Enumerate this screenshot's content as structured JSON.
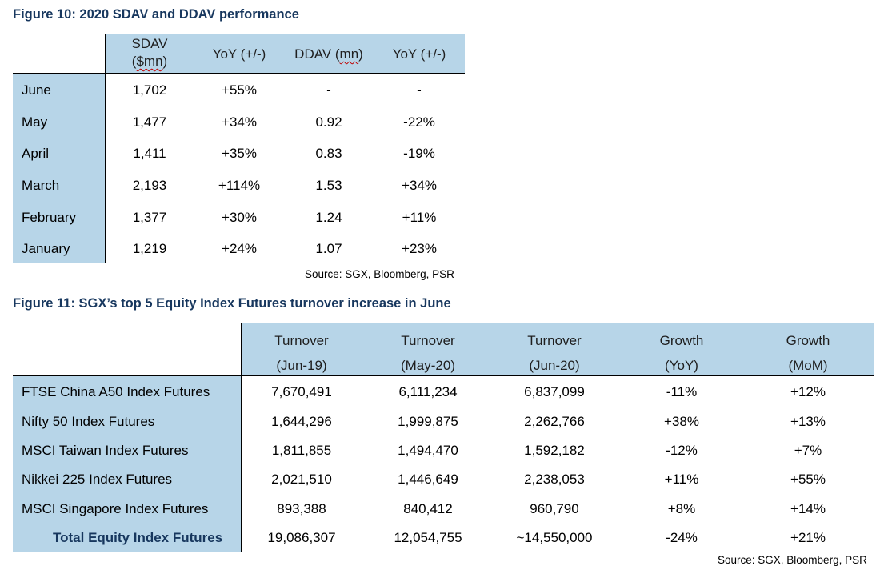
{
  "figure10": {
    "title": "Figure 10: 2020 SDAV and DDAV performance",
    "headers": {
      "sdav_line1": "SDAV",
      "sdav_line2_open": "(",
      "sdav_line2_unit": "$mn",
      "sdav_line2_close": ")",
      "yoy1": "YoY (+/-)",
      "ddav_pre": "DDAV (",
      "ddav_unit": "mn",
      "ddav_post": ")",
      "yoy2": "YoY (+/-)"
    },
    "rows": [
      {
        "month": "June",
        "sdav": "1,702",
        "yoy1": "+55%",
        "ddav": "-",
        "yoy2": "-"
      },
      {
        "month": "May",
        "sdav": "1,477",
        "yoy1": "+34%",
        "ddav": "0.92",
        "yoy2": "-22%"
      },
      {
        "month": "April",
        "sdav": "1,411",
        "yoy1": "+35%",
        "ddav": "0.83",
        "yoy2": "-19%"
      },
      {
        "month": "March",
        "sdav": "2,193",
        "yoy1": "+114%",
        "ddav": "1.53",
        "yoy2": "+34%"
      },
      {
        "month": "February",
        "sdav": "1,377",
        "yoy1": "+30%",
        "ddav": "1.24",
        "yoy2": "+11%"
      },
      {
        "month": "January",
        "sdav": "1,219",
        "yoy1": "+24%",
        "ddav": "1.07",
        "yoy2": "+23%"
      }
    ],
    "source": "Source: SGX, Bloomberg, PSR"
  },
  "figure11": {
    "title": "Figure 11: SGX’s top 5 Equity Index Futures turnover increase in June",
    "headers": [
      {
        "line1": "Turnover",
        "line2": "(Jun-19)"
      },
      {
        "line1": "Turnover",
        "line2": "(May-20)"
      },
      {
        "line1": "Turnover",
        "line2": "(Jun-20)"
      },
      {
        "line1": "Growth",
        "line2": "(YoY)"
      },
      {
        "line1": "Growth",
        "line2": "(MoM)"
      }
    ],
    "rows": [
      {
        "name": "FTSE China A50 Index Futures",
        "jun19": "7,670,491",
        "may20": "6,111,234",
        "jun20": "6,837,099",
        "yoy": "-11%",
        "mom": "+12%"
      },
      {
        "name": "Nifty 50 Index Futures",
        "jun19": "1,644,296",
        "may20": "1,999,875",
        "jun20": "2,262,766",
        "yoy": "+38%",
        "mom": "+13%"
      },
      {
        "name": "MSCI Taiwan Index Futures",
        "jun19": "1,811,855",
        "may20": "1,494,470",
        "jun20": "1,592,182",
        "yoy": "-12%",
        "mom": "+7%"
      },
      {
        "name": "Nikkei 225 Index Futures",
        "jun19": "2,021,510",
        "may20": "1,446,649",
        "jun20": "2,238,053",
        "yoy": "+11%",
        "mom": "+55%"
      },
      {
        "name": "MSCI Singapore Index Futures",
        "jun19": "893,388",
        "may20": "840,412",
        "jun20": "960,790",
        "yoy": "+8%",
        "mom": "+14%"
      }
    ],
    "total": {
      "name": "Total Equity Index Futures",
      "jun19": "19,086,307",
      "may20": "12,054,755",
      "jun20": "~14,550,000",
      "yoy": "-24%",
      "mom": "+21%"
    },
    "source": "Source: SGX, Bloomberg, PSR"
  }
}
